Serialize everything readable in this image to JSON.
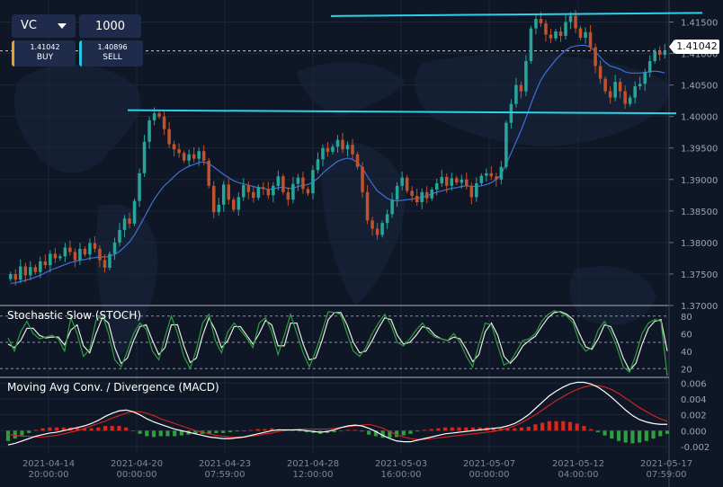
{
  "controls": {
    "symbol": "VC",
    "quantity": "1000",
    "buy": {
      "price": "1.41042",
      "label": "BUY"
    },
    "sell": {
      "price": "1.40896",
      "label": "SELL"
    }
  },
  "current_price": "1.41042",
  "colors": {
    "background": "#0f1726",
    "bull_candle": "#26a69a",
    "bear_candle": "#c0522d",
    "flat_candle": "#9aa3ad",
    "ma_line": "#3f6fd8",
    "trendline": "#29d3ea",
    "stoch_k": "#2e9e3e",
    "stoch_d": "#e8e8e8",
    "macd_line": "#ffffff",
    "signal_line": "#d9261c",
    "hist_pos": "#d9261c",
    "hist_neg": "#2e9e3e"
  },
  "chart_data": [
    {
      "type": "candlestick",
      "name": "price",
      "ylim": [
        1.37,
        1.4165
      ],
      "y_ticks": [
        "1.41500",
        "1.41000",
        "1.40500",
        "1.40000",
        "1.39500",
        "1.39000",
        "1.38500",
        "1.38000",
        "1.37500",
        "1.37000"
      ],
      "x_ticks": [
        {
          "date": "2021-04-14",
          "time": "20:00:00"
        },
        {
          "date": "2021-04-20",
          "time": "00:00:00"
        },
        {
          "date": "2021-04-23",
          "time": "07:59:00"
        },
        {
          "date": "2021-04-28",
          "time": "12:00:00"
        },
        {
          "date": "2021-05-03",
          "time": "16:00:00"
        },
        {
          "date": "2021-05-07",
          "time": "00:00:00"
        },
        {
          "date": "2021-05-12",
          "time": "04:00:00"
        },
        {
          "date": "2021-05-17",
          "time": "07:59:00"
        }
      ],
      "close": [
        1.375,
        1.3741,
        1.3762,
        1.3748,
        1.3761,
        1.3753,
        1.377,
        1.3764,
        1.3782,
        1.3775,
        1.3778,
        1.3792,
        1.3785,
        1.3772,
        1.379,
        1.3781,
        1.3799,
        1.379,
        1.3772,
        1.376,
        1.3782,
        1.38,
        1.382,
        1.3838,
        1.383,
        1.3866,
        1.391,
        1.396,
        1.3994,
        1.4005,
        1.4,
        1.398,
        1.3956,
        1.3948,
        1.3942,
        1.393,
        1.394,
        1.3933,
        1.3945,
        1.393,
        1.389,
        1.3848,
        1.386,
        1.3892,
        1.3868,
        1.3852,
        1.3872,
        1.3891,
        1.388,
        1.3871,
        1.3888,
        1.3885,
        1.3875,
        1.389,
        1.3905,
        1.388,
        1.3868,
        1.3893,
        1.3903,
        1.3885,
        1.3878,
        1.3915,
        1.3932,
        1.395,
        1.3944,
        1.3952,
        1.3963,
        1.3948,
        1.3955,
        1.394,
        1.392,
        1.388,
        1.3835,
        1.3822,
        1.3812,
        1.3831,
        1.3845,
        1.3868,
        1.389,
        1.3903,
        1.3882,
        1.3874,
        1.3864,
        1.388,
        1.387,
        1.3884,
        1.3894,
        1.3904,
        1.389,
        1.3902,
        1.3895,
        1.39,
        1.389,
        1.3872,
        1.3894,
        1.3906,
        1.391,
        1.3905,
        1.39,
        1.392,
        1.399,
        1.402,
        1.405,
        1.404,
        1.4088,
        1.414,
        1.4155,
        1.4148,
        1.413,
        1.4124,
        1.4135,
        1.4128,
        1.415,
        1.416,
        1.414,
        1.4125,
        1.4134,
        1.411,
        1.408,
        1.406,
        1.404,
        1.403,
        1.4055,
        1.404,
        1.402,
        1.403,
        1.4048,
        1.4052,
        1.407,
        1.4088,
        1.4104,
        1.4098,
        1.4104
      ],
      "ma": [
        1.3735,
        1.3736,
        1.3738,
        1.374,
        1.3742,
        1.3745,
        1.3748,
        1.3752,
        1.3756,
        1.3759,
        1.3762,
        1.3765,
        1.3768,
        1.377,
        1.3772,
        1.3773,
        1.3775,
        1.3776,
        1.3777,
        1.3777,
        1.3778,
        1.3781,
        1.3786,
        1.3793,
        1.3801,
        1.3812,
        1.3826,
        1.384,
        1.3855,
        1.3869,
        1.388,
        1.389,
        1.3897,
        1.3905,
        1.3912,
        1.3917,
        1.3921,
        1.3924,
        1.3927,
        1.3928,
        1.3925,
        1.392,
        1.3914,
        1.3908,
        1.3903,
        1.3898,
        1.3895,
        1.3893,
        1.3891,
        1.3889,
        1.3887,
        1.3886,
        1.3884,
        1.3885,
        1.3887,
        1.3888,
        1.3886,
        1.3886,
        1.3889,
        1.3891,
        1.3892,
        1.3896,
        1.3902,
        1.391,
        1.3917,
        1.3923,
        1.3929,
        1.3932,
        1.3934,
        1.3932,
        1.3927,
        1.3918,
        1.3905,
        1.3893,
        1.3882,
        1.3876,
        1.387,
        1.3867,
        1.3866,
        1.3867,
        1.3868,
        1.3869,
        1.387,
        1.3872,
        1.3874,
        1.3877,
        1.388,
        1.3882,
        1.3884,
        1.3886,
        1.3887,
        1.3889,
        1.389,
        1.3889,
        1.3889,
        1.389,
        1.3892,
        1.3895,
        1.39,
        1.3908,
        1.3925,
        1.3942,
        1.396,
        1.3978,
        1.3998,
        1.402,
        1.404,
        1.4058,
        1.407,
        1.408,
        1.409,
        1.4098,
        1.4105,
        1.411,
        1.4112,
        1.4113,
        1.4113,
        1.411,
        1.4103,
        1.4094,
        1.4086,
        1.408,
        1.4078,
        1.4075,
        1.4071,
        1.4069,
        1.4069,
        1.4069,
        1.407,
        1.4071,
        1.4072,
        1.4071,
        1.4069
      ],
      "resistance": [
        1.41595,
        1.41645
      ],
      "support": [
        1.401,
        1.4005
      ]
    },
    {
      "type": "line",
      "name": "Stochastic Slow (STOCH)",
      "ylim": [
        10,
        90
      ],
      "y_ticks": [
        80,
        60,
        40,
        20
      ],
      "dashed_levels": [
        20,
        50,
        80
      ],
      "series": [
        {
          "name": "%K",
          "values": [
            55,
            40,
            62,
            74,
            60,
            54,
            56,
            58,
            54,
            40,
            78,
            60,
            34,
            42,
            75,
            82,
            60,
            30,
            22,
            40,
            60,
            72,
            65,
            40,
            30,
            56,
            80,
            60,
            34,
            20,
            42,
            72,
            82,
            52,
            38,
            62,
            72,
            64,
            55,
            44,
            72,
            78,
            62,
            36,
            58,
            82,
            60,
            38,
            22,
            40,
            62,
            85,
            84,
            82,
            60,
            40,
            34,
            44,
            60,
            72,
            82,
            70,
            50,
            46,
            54,
            64,
            72,
            62,
            56,
            54,
            52,
            60,
            50,
            34,
            22,
            48,
            72,
            70,
            46,
            24,
            28,
            40,
            52,
            54,
            60,
            74,
            82,
            86,
            84,
            80,
            72,
            50,
            40,
            44,
            64,
            74,
            62,
            44,
            22,
            16,
            36,
            60,
            72,
            76,
            74,
            12
          ]
        },
        {
          "name": "%D",
          "values": [
            48,
            44,
            52,
            66,
            66,
            58,
            55,
            56,
            56,
            47,
            64,
            70,
            46,
            38,
            60,
            78,
            72,
            44,
            26,
            32,
            52,
            68,
            70,
            52,
            36,
            44,
            70,
            70,
            46,
            27,
            32,
            58,
            78,
            64,
            44,
            52,
            68,
            68,
            58,
            48,
            60,
            75,
            70,
            46,
            46,
            72,
            72,
            48,
            30,
            32,
            52,
            76,
            84,
            84,
            70,
            50,
            38,
            40,
            52,
            66,
            78,
            76,
            58,
            48,
            50,
            58,
            68,
            66,
            58,
            54,
            52,
            56,
            54,
            42,
            28,
            36,
            62,
            72,
            58,
            34,
            26,
            34,
            46,
            52,
            57,
            68,
            78,
            84,
            85,
            82,
            76,
            60,
            45,
            42,
            54,
            70,
            68,
            52,
            32,
            18,
            26,
            48,
            66,
            74,
            76,
            40
          ]
        }
      ]
    },
    {
      "type": "bar",
      "name": "Moving Avg Conv. / Divergence (MACD)",
      "ylim": [
        -0.0028,
        0.0065
      ],
      "y_ticks": [
        "0.006",
        "0.004",
        "0.002",
        "0.000",
        "-0.002"
      ],
      "series": [
        {
          "name": "MACD",
          "values": [
            -0.0018,
            -0.0016,
            -0.0013,
            -0.001,
            -0.0007,
            -0.0005,
            -0.0003,
            -0.0002,
            0.0,
            0.0002,
            0.0004,
            0.0006,
            0.0009,
            0.0013,
            0.0018,
            0.0022,
            0.0025,
            0.0026,
            0.0024,
            0.002,
            0.0015,
            0.0011,
            0.0008,
            0.0005,
            0.0002,
            0.0,
            -0.0002,
            -0.0004,
            -0.0006,
            -0.0008,
            -0.0009,
            -0.001,
            -0.001,
            -0.0009,
            -0.0008,
            -0.0006,
            -0.0004,
            -0.0002,
            0.0,
            0.0001,
            0.0001,
            0.0001,
            0.0001,
            0.0,
            -0.0001,
            -0.0002,
            -0.0001,
            0.0001,
            0.0004,
            0.0006,
            0.0007,
            0.0006,
            0.0003,
            -0.0001,
            -0.0006,
            -0.001,
            -0.0013,
            -0.0014,
            -0.0014,
            -0.0012,
            -0.001,
            -0.0008,
            -0.0006,
            -0.0004,
            -0.0003,
            -0.0002,
            -0.0001,
            0.0,
            0.0001,
            0.0002,
            0.0003,
            0.0004,
            0.0006,
            0.0009,
            0.0014,
            0.002,
            0.0028,
            0.0036,
            0.0044,
            0.005,
            0.0055,
            0.0059,
            0.0061,
            0.0061,
            0.0059,
            0.0055,
            0.0049,
            0.0042,
            0.0034,
            0.0026,
            0.0019,
            0.0014,
            0.0011,
            0.0009,
            0.0008,
            0.0008
          ]
        },
        {
          "name": "Signal",
          "values": [
            -0.0005,
            -0.0006,
            -0.0007,
            -0.0007,
            -0.0008,
            -0.0008,
            -0.0007,
            -0.0006,
            -0.0004,
            -0.0002,
            0.0,
            0.0003,
            0.0006,
            0.0009,
            0.0012,
            0.0016,
            0.0019,
            0.0022,
            0.0024,
            0.0024,
            0.0022,
            0.0019,
            0.0015,
            0.0012,
            0.0009,
            0.0006,
            0.0003,
            0.0,
            -0.0002,
            -0.0004,
            -0.0006,
            -0.0007,
            -0.0008,
            -0.0008,
            -0.0008,
            -0.0007,
            -0.0006,
            -0.0004,
            -0.0003,
            -0.0001,
            0.0,
            0.0001,
            0.0002,
            0.0002,
            0.0002,
            0.0002,
            0.0002,
            0.0003,
            0.0004,
            0.0005,
            0.0006,
            0.0007,
            0.0008,
            0.0006,
            0.0003,
            -0.0001,
            -0.0005,
            -0.0008,
            -0.001,
            -0.0011,
            -0.0011,
            -0.001,
            -0.0009,
            -0.0008,
            -0.0007,
            -0.0006,
            -0.0005,
            -0.0004,
            -0.0003,
            -0.0002,
            -0.0001,
            0.0001,
            0.0003,
            0.0006,
            0.001,
            0.0015,
            0.002,
            0.0026,
            0.0032,
            0.0038,
            0.0043,
            0.0048,
            0.0052,
            0.0055,
            0.0057,
            0.0057,
            0.0055,
            0.0052,
            0.0047,
            0.0041,
            0.0035,
            0.0029,
            0.0024,
            0.0019,
            0.0015,
            0.0012
          ]
        }
      ]
    }
  ]
}
